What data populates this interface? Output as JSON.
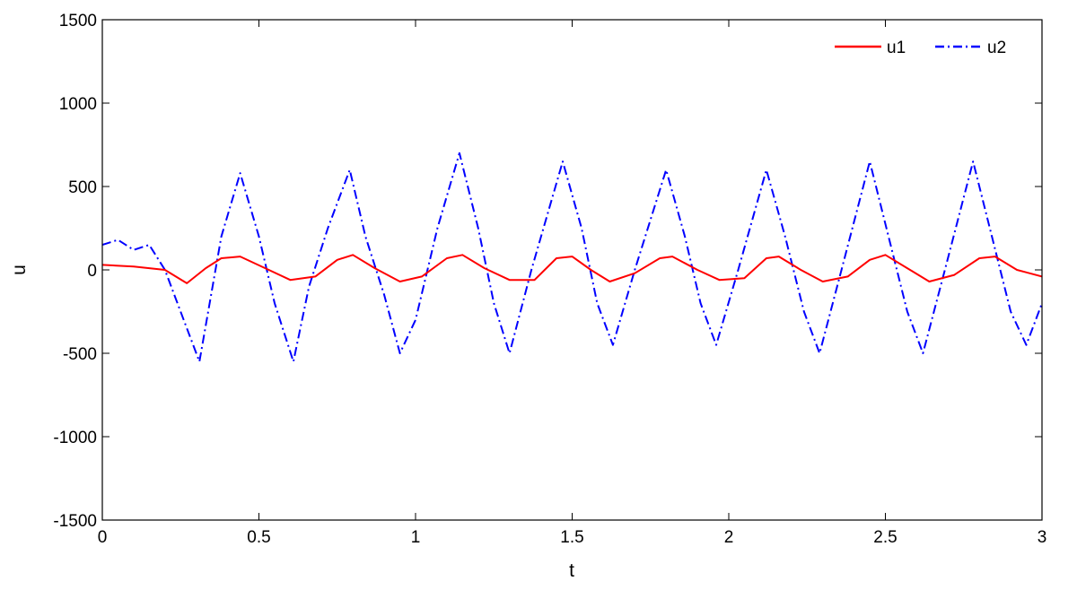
{
  "chart_data": {
    "type": "line",
    "title": "",
    "xlabel": "t",
    "ylabel": "u",
    "xlim": [
      0,
      3
    ],
    "ylim": [
      -1500,
      1500
    ],
    "x_ticks": [
      0,
      0.5,
      1,
      1.5,
      2,
      2.5,
      3
    ],
    "x_tick_labels": [
      "0",
      "0.5",
      "1",
      "1.5",
      "2",
      "2.5",
      "3"
    ],
    "y_ticks": [
      1500,
      1000,
      500,
      0,
      -500,
      -1000,
      -1500
    ],
    "y_tick_labels": [
      "1500",
      "1000",
      "500",
      "0",
      "-500",
      "-1000",
      "-1500"
    ],
    "grid": false,
    "legend_position": "top-right",
    "series": [
      {
        "name": "u1",
        "color": "#ff0000",
        "line_style": "solid",
        "x": [
          0,
          0.1,
          0.2,
          0.27,
          0.33,
          0.38,
          0.44,
          0.52,
          0.6,
          0.68,
          0.75,
          0.8,
          0.87,
          0.95,
          1.02,
          1.1,
          1.15,
          1.22,
          1.3,
          1.38,
          1.45,
          1.5,
          1.56,
          1.62,
          1.7,
          1.78,
          1.82,
          1.9,
          1.97,
          2.05,
          2.12,
          2.16,
          2.23,
          2.3,
          2.38,
          2.45,
          2.5,
          2.57,
          2.64,
          2.72,
          2.8,
          2.85,
          2.92,
          3.0
        ],
        "y": [
          30,
          20,
          0,
          -80,
          10,
          70,
          80,
          10,
          -60,
          -40,
          60,
          90,
          10,
          -70,
          -40,
          70,
          90,
          10,
          -60,
          -60,
          70,
          80,
          0,
          -70,
          -20,
          70,
          80,
          0,
          -60,
          -50,
          70,
          80,
          0,
          -70,
          -40,
          60,
          90,
          10,
          -70,
          -30,
          70,
          80,
          0,
          -40
        ]
      },
      {
        "name": "u2",
        "color": "#0000ff",
        "line_style": "dash-dot",
        "x": [
          0,
          0.05,
          0.1,
          0.15,
          0.2,
          0.26,
          0.31,
          0.38,
          0.44,
          0.5,
          0.55,
          0.61,
          0.66,
          0.72,
          0.79,
          0.84,
          0.9,
          0.95,
          1.0,
          1.07,
          1.14,
          1.2,
          1.25,
          1.3,
          1.37,
          1.47,
          1.53,
          1.58,
          1.63,
          1.7,
          1.8,
          1.86,
          1.91,
          1.96,
          2.03,
          2.12,
          2.18,
          2.24,
          2.29,
          2.36,
          2.45,
          2.51,
          2.57,
          2.62,
          2.69,
          2.78,
          2.84,
          2.9,
          2.95,
          3.0
        ],
        "y": [
          150,
          180,
          120,
          150,
          0,
          -300,
          -550,
          200,
          580,
          200,
          -200,
          -550,
          -100,
          250,
          600,
          200,
          -150,
          -500,
          -300,
          250,
          700,
          250,
          -200,
          -500,
          0,
          650,
          250,
          -200,
          -450,
          0,
          600,
          200,
          -200,
          -450,
          0,
          600,
          200,
          -250,
          -500,
          0,
          650,
          200,
          -250,
          -500,
          0,
          650,
          200,
          -250,
          -450,
          -200
        ]
      }
    ]
  }
}
